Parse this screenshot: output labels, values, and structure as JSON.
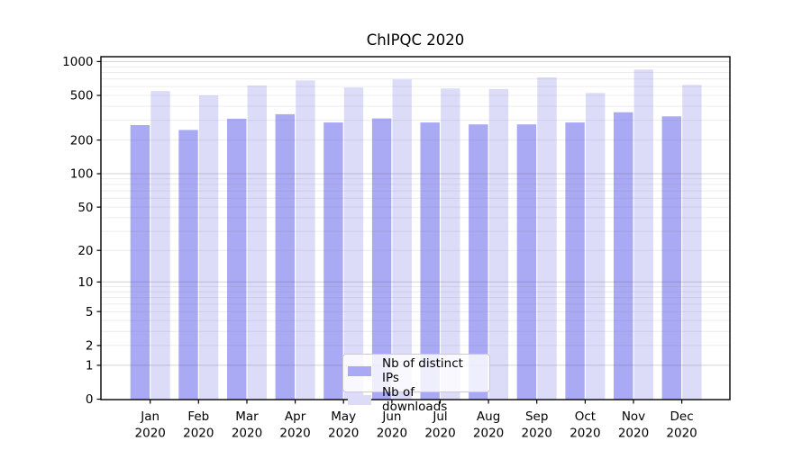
{
  "chart_data": {
    "type": "bar",
    "title": "ChIPQC 2020",
    "categories": [
      "Jan",
      "Feb",
      "Mar",
      "Apr",
      "May",
      "Jun",
      "Jul",
      "Aug",
      "Sep",
      "Oct",
      "Nov",
      "Dec"
    ],
    "category_year": "2020",
    "series": [
      {
        "name": "Nb of distinct IPs",
        "color": "#a9a9f4",
        "values": [
          272,
          246,
          310,
          340,
          287,
          312,
          287,
          276,
          276,
          287,
          354,
          325
        ]
      },
      {
        "name": "Nb of downloads",
        "color": "#dcdcf9",
        "values": [
          548,
          500,
          613,
          679,
          588,
          694,
          577,
          570,
          724,
          526,
          850,
          621
        ]
      }
    ],
    "y_scale": "log1p",
    "y_ticks": [
      0,
      1,
      2,
      5,
      10,
      20,
      50,
      100,
      200,
      500,
      1000
    ],
    "ylim": [
      0,
      1100
    ],
    "grid": true,
    "legend_position": "lower center",
    "axis_color": "#000000",
    "major_grid_color": "rgba(80,80,80,0.25)",
    "minor_grid_color": "rgba(120,120,120,0.14)"
  }
}
